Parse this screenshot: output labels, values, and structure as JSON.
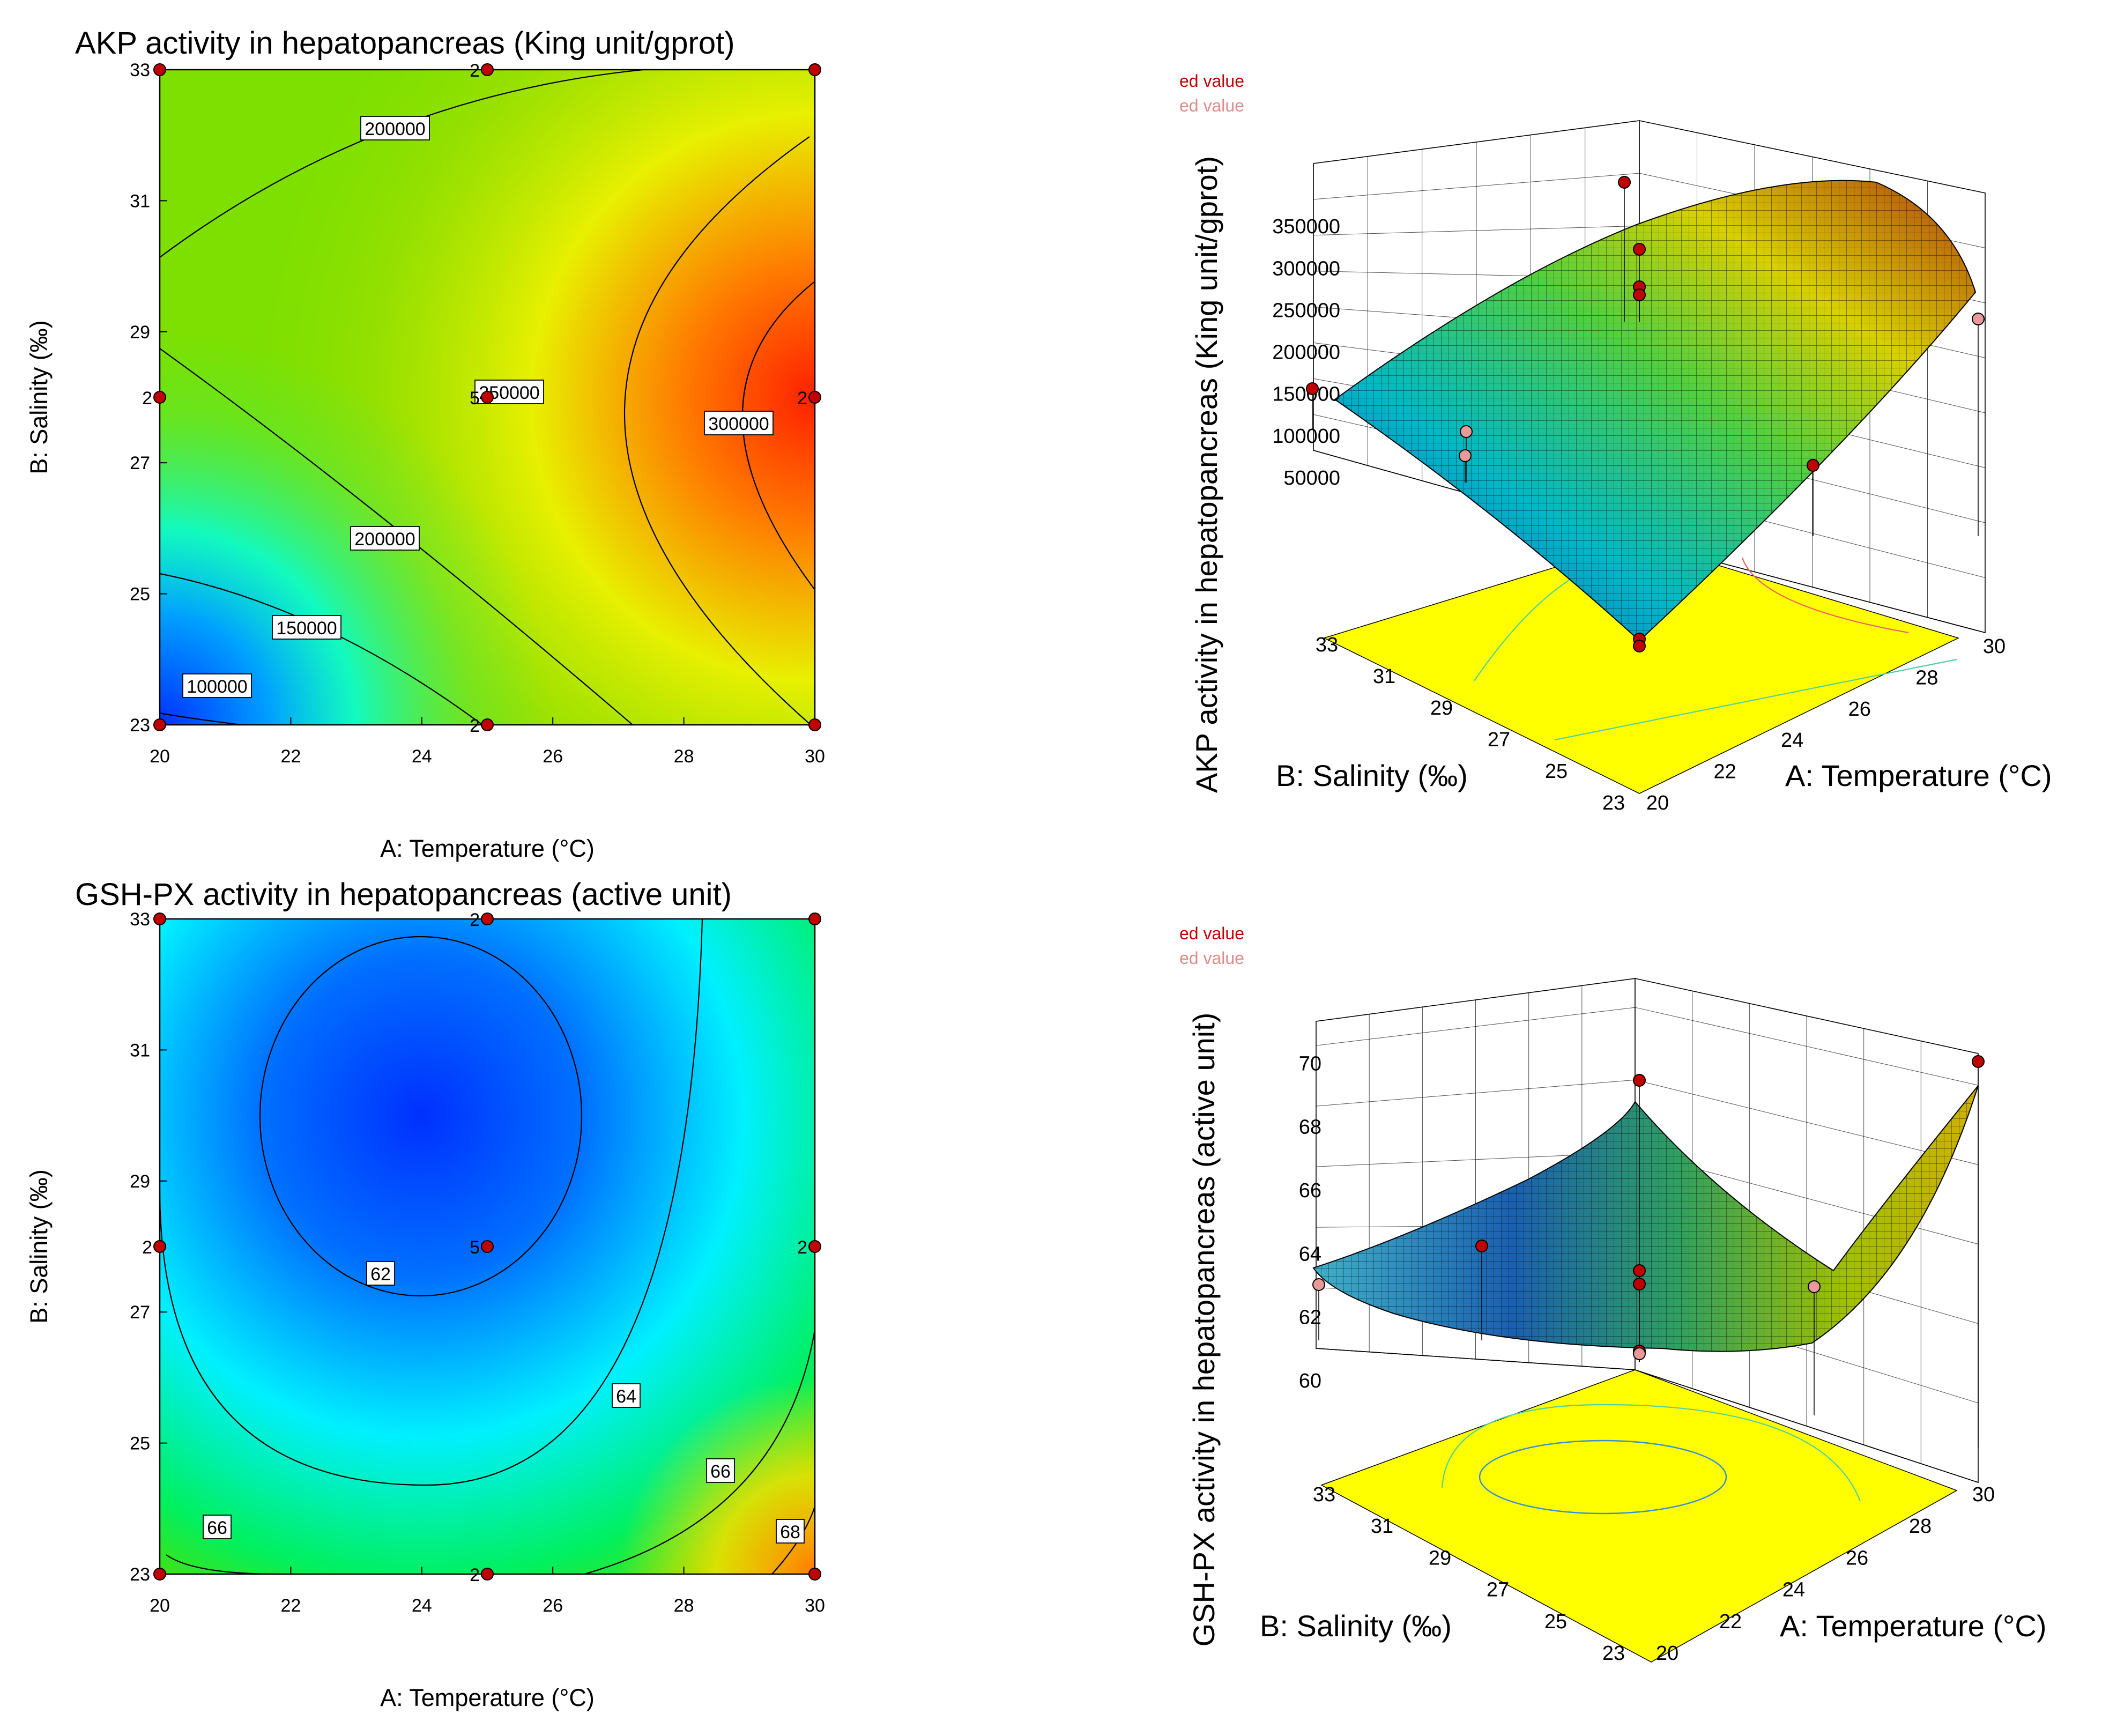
{
  "chart_data": [
    {
      "type": "contour",
      "title": "AKP activity in hepatopancreas (King unit/gprot)",
      "xlabel": "A: Temperature (°C)",
      "ylabel": "B: Salinity (‰)",
      "xlim": [
        20,
        30
      ],
      "ylim": [
        23,
        33
      ],
      "xticks": [
        "20",
        "22",
        "24",
        "26",
        "28",
        "30"
      ],
      "yticks": [
        "23",
        "25",
        "27",
        "29",
        "31",
        "33"
      ],
      "contour_labels": [
        "100000",
        "150000",
        "200000",
        "200000",
        "250000",
        "300000"
      ],
      "design_points": [
        {
          "x": 20,
          "y": 23
        },
        {
          "x": 25,
          "y": 23,
          "label": "2"
        },
        {
          "x": 30,
          "y": 23
        },
        {
          "x": 20,
          "y": 28,
          "label": "2"
        },
        {
          "x": 25,
          "y": 28,
          "label": "5"
        },
        {
          "x": 30,
          "y": 28,
          "label": "2"
        },
        {
          "x": 20,
          "y": 33
        },
        {
          "x": 25,
          "y": 33,
          "label": "2"
        },
        {
          "x": 30,
          "y": 33
        }
      ]
    },
    {
      "type": "surface3d",
      "zlabel": "AKP activity in hepatopancreas (King unit/gprot)",
      "xlabel": "A: Temperature (°C)",
      "ylabel": "B: Salinity (‰)",
      "xticks": [
        "20",
        "22",
        "24",
        "26",
        "28",
        "30"
      ],
      "yticks": [
        "23",
        "25",
        "27",
        "29",
        "31",
        "33"
      ],
      "zticks": [
        "50000",
        "100000",
        "150000",
        "200000",
        "250000",
        "300000",
        "350000"
      ],
      "legend": [
        "ed value",
        "ed value"
      ]
    },
    {
      "type": "contour",
      "title": "GSH-PX activity in hepatopancreas (active unit)",
      "xlabel": "A: Temperature (°C)",
      "ylabel": "B: Salinity (‰)",
      "xlim": [
        20,
        30
      ],
      "ylim": [
        23,
        33
      ],
      "xticks": [
        "20",
        "22",
        "24",
        "26",
        "28",
        "30"
      ],
      "yticks": [
        "23",
        "25",
        "27",
        "29",
        "31",
        "33"
      ],
      "contour_labels": [
        "62",
        "64",
        "66",
        "66",
        "68"
      ],
      "design_points": [
        {
          "x": 20,
          "y": 23
        },
        {
          "x": 25,
          "y": 23,
          "label": "2"
        },
        {
          "x": 30,
          "y": 23
        },
        {
          "x": 20,
          "y": 28,
          "label": "2"
        },
        {
          "x": 25,
          "y": 28,
          "label": "5"
        },
        {
          "x": 30,
          "y": 28,
          "label": "2"
        },
        {
          "x": 20,
          "y": 33
        },
        {
          "x": 25,
          "y": 33,
          "label": "2"
        },
        {
          "x": 30,
          "y": 33
        }
      ]
    },
    {
      "type": "surface3d",
      "zlabel": "GSH-PX activity in hepatopancreas (active unit)",
      "xlabel": "A: Temperature (°C)",
      "ylabel": "B: Salinity (‰)",
      "xticks": [
        "20",
        "22",
        "24",
        "26",
        "28",
        "30"
      ],
      "yticks": [
        "23",
        "25",
        "27",
        "29",
        "31",
        "33"
      ],
      "zticks": [
        "60",
        "62",
        "64",
        "66",
        "68",
        "70"
      ],
      "legend": [
        "ed value",
        "ed value"
      ]
    }
  ]
}
